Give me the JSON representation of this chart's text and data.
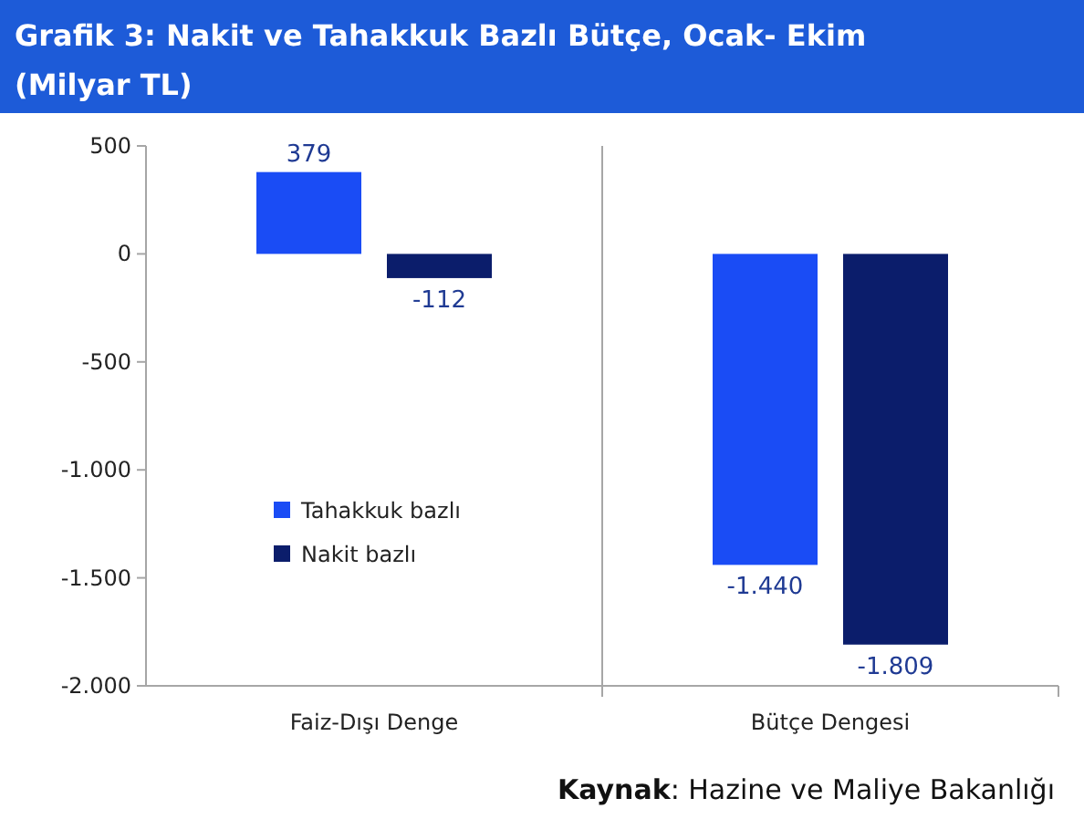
{
  "chart_data": {
    "type": "bar",
    "title": "Grafik 3: Nakit ve Tahakkuk Bazlı Bütçe, Ocak- Ekim",
    "subtitle": "(Milyar TL)",
    "categories": [
      "Faiz-Dışı Denge",
      "Bütçe Dengesi"
    ],
    "series": [
      {
        "name": "Tahakkuk bazlı",
        "color": "#1a4cf5",
        "values": [
          379,
          -1440
        ],
        "value_labels": [
          "379",
          "-1.440"
        ]
      },
      {
        "name": "Nakit bazlı",
        "color": "#0b1d6b",
        "values": [
          -112,
          -1809
        ],
        "value_labels": [
          "-112",
          "-1.809"
        ]
      }
    ],
    "ylim": [
      -2000,
      500
    ],
    "yticks": [
      500,
      0,
      {
        "value": -500,
        "label": "-500"
      },
      {
        "value": -1000,
        "label": "-1.000"
      },
      {
        "value": -1500,
        "label": "-1.500"
      },
      {
        "value": -2000,
        "label": "-2.000"
      }
    ],
    "grid": false,
    "legend": "bottom left",
    "annotations": [
      "Kaynak: Hazine ve Maliye Bakanlığı"
    ]
  }
}
